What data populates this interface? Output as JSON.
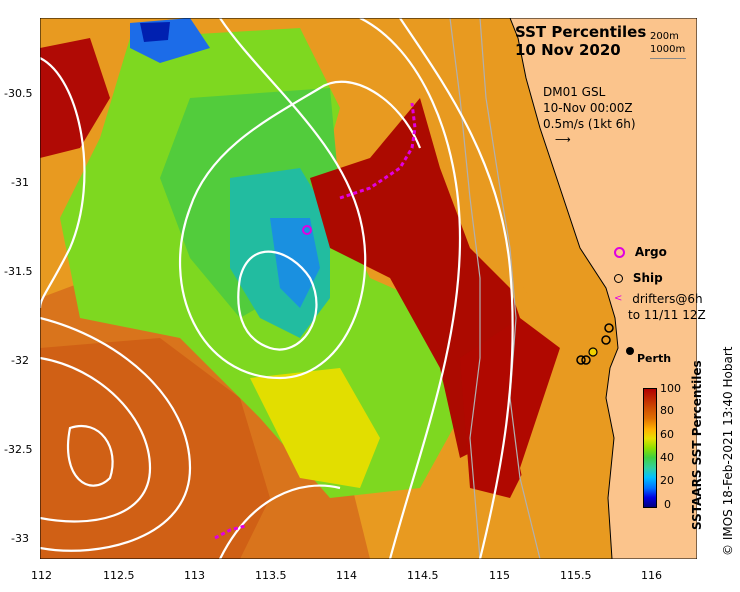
{
  "title": {
    "line1": "SST Percentiles",
    "line2": "10 Nov 2020"
  },
  "isobath_legend": [
    "200m",
    "1000m"
  ],
  "current_info": {
    "model": "DM01 GSL",
    "time": "10-Nov 00:00Z",
    "scale": "0.5m/s (1kt 6h)"
  },
  "legend": {
    "argo": "Argo",
    "ship": "Ship",
    "drifters_line1": "drifters@6h",
    "drifters_line2": "to 11/11 12Z",
    "argo_color": "#e000e0",
    "ship_color": "#000000",
    "drifter_color": "#e000e0"
  },
  "place": {
    "perth": "Perth"
  },
  "axes": {
    "x_ticks": [
      "112",
      "112.5",
      "113",
      "113.5",
      "114",
      "114.5",
      "115",
      "115.5",
      "116"
    ],
    "y_ticks": [
      "-30.5",
      "-31",
      "-31.5",
      "-32",
      "-32.5",
      "-33"
    ],
    "x_range": [
      112,
      116.3
    ],
    "y_range": [
      -30.05,
      -33.1
    ]
  },
  "colorbar": {
    "title": "SSTAARS SST Percentiles",
    "ticks": [
      "100",
      "80",
      "60",
      "40",
      "20",
      "0"
    ],
    "colors": [
      "#000080",
      "#0000e0",
      "#0070ff",
      "#00c0ff",
      "#30d0a0",
      "#40d040",
      "#90e000",
      "#e8e000",
      "#ffb000",
      "#e07000",
      "#d05000",
      "#b00000"
    ]
  },
  "credit": "© IMOS 18-Feb-2021 13:40 Hobart",
  "colors": {
    "land": "#fbc48c",
    "ocean_base": "#e89a20",
    "contour": "#ffffff",
    "isobath": "#b0b0b0",
    "coastline": "#000000"
  }
}
